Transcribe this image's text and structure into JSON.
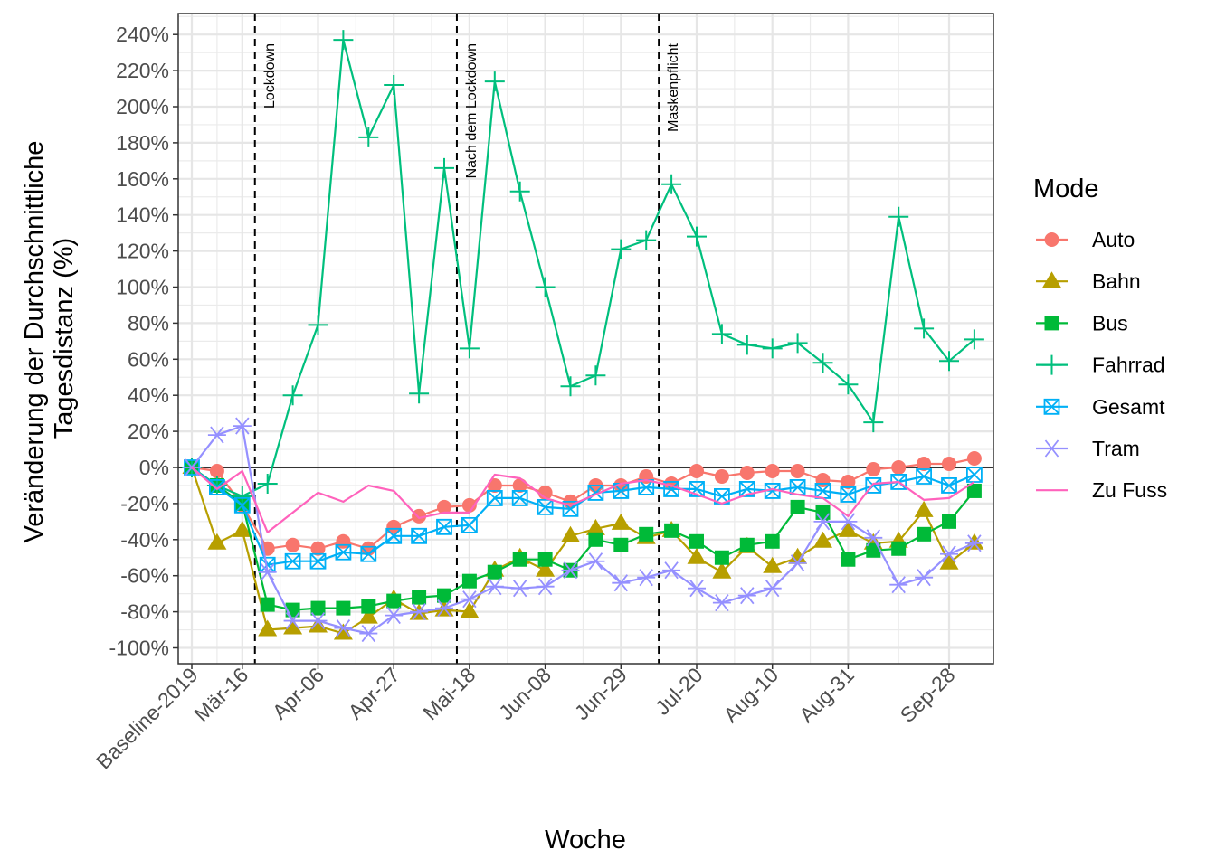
{
  "chart_data": {
    "type": "line",
    "xlabel": "Woche",
    "ylabel_lines": [
      "Veränderung der Durchschnittliche",
      "Tagesdistanz (%)"
    ],
    "x_tick_labels": [
      "Baseline-2019",
      "Mär-16",
      "Apr-06",
      "Apr-27",
      "Mai-18",
      "Jun-08",
      "Jun-29",
      "Jul-20",
      "Aug-10",
      "Aug-31",
      "Sep-28"
    ],
    "x_tick_index": [
      0,
      2,
      5,
      8,
      11,
      14,
      17,
      20,
      23,
      26,
      30
    ],
    "y_ticks": [
      "-100%",
      "-80%",
      "-60%",
      "-40%",
      "-20%",
      "0%",
      "20%",
      "40%",
      "60%",
      "80%",
      "100%",
      "120%",
      "140%",
      "160%",
      "180%",
      "200%",
      "220%",
      "240%"
    ],
    "ylim": [
      -108,
      252
    ],
    "grid": true,
    "legend_title": "Mode",
    "legend_position": "right",
    "reference_line": 0,
    "vlines": [
      {
        "label": "Lockdown",
        "position": "between Baseline-2019 and Mär-16"
      },
      {
        "label": "Nach dem Lockdown",
        "position": "between Apr-27 and Mai-18"
      },
      {
        "label": "Maskenpflicht",
        "position": "between Jun-29 and Jul-20"
      }
    ],
    "series": [
      {
        "name": "Auto",
        "color": "#F8766D",
        "marker": "circle",
        "values": [
          0,
          -2,
          -21,
          -45,
          -43,
          -45,
          -41,
          -45,
          -33,
          -27,
          -22,
          -21,
          -10,
          -10,
          -14,
          -19,
          -10,
          -10,
          -5,
          -9,
          -2,
          -5,
          -3,
          -2,
          -2,
          -7,
          -8,
          -1,
          0,
          2,
          2,
          5
        ]
      },
      {
        "name": "Bahn",
        "color": "#B79F00",
        "marker": "triangle",
        "values": [
          0,
          -42,
          -35,
          -90,
          -89,
          -88,
          -92,
          -83,
          -73,
          -81,
          -79,
          -80,
          -57,
          -50,
          -57,
          -38,
          -34,
          -31,
          -39,
          -35,
          -50,
          -58,
          -44,
          -55,
          -50,
          -41,
          -35,
          -42,
          -41,
          -24,
          -53,
          -42
        ]
      },
      {
        "name": "Bus",
        "color": "#00BA38",
        "marker": "square",
        "values": [
          0,
          -10,
          -20,
          -76,
          -79,
          -78,
          -78,
          -77,
          -74,
          -72,
          -71,
          -63,
          -58,
          -51,
          -51,
          -57,
          -40,
          -43,
          -37,
          -35,
          -41,
          -50,
          -43,
          -41,
          -22,
          -25,
          -51,
          -46,
          -45,
          -37,
          -30,
          -13
        ]
      },
      {
        "name": "Fahrrad",
        "color": "#00BF7D",
        "marker": "plus",
        "values": [
          0,
          -10,
          -16,
          -9,
          40,
          79,
          237,
          183,
          212,
          41,
          166,
          66,
          214,
          153,
          100,
          45,
          51,
          121,
          126,
          157,
          128,
          74,
          68,
          66,
          69,
          58,
          46,
          25,
          139,
          77,
          59,
          71
        ]
      },
      {
        "name": "Gesamt",
        "color": "#00B0F6",
        "marker": "square-x",
        "values": [
          0,
          -11,
          -21,
          -54,
          -52,
          -52,
          -47,
          -48,
          -38,
          -38,
          -33,
          -32,
          -17,
          -17,
          -22,
          -23,
          -14,
          -13,
          -11,
          -12,
          -12,
          -16,
          -12,
          -13,
          -11,
          -13,
          -15,
          -10,
          -8,
          -5,
          -10,
          -4
        ]
      },
      {
        "name": "Tram",
        "color": "#9590FF",
        "marker": "asterisk",
        "values": [
          0,
          18,
          23,
          -58,
          -85,
          -85,
          -89,
          -92,
          -82,
          -80,
          -78,
          -73,
          -66,
          -67,
          -66,
          -57,
          -52,
          -64,
          -61,
          -57,
          -67,
          -75,
          -71,
          -67,
          -53,
          -30,
          -30,
          -39,
          -65,
          -61,
          -48,
          -42
        ]
      },
      {
        "name": "Zu Fuss",
        "color": "#FF62BC",
        "marker": "none",
        "values": [
          0,
          -12,
          -2,
          -36,
          -25,
          -14,
          -19,
          -10,
          -13,
          -28,
          -25,
          -25,
          -4,
          -6,
          -17,
          -21,
          -15,
          -9,
          -7,
          -10,
          -15,
          -20,
          -15,
          -12,
          -15,
          -17,
          -27,
          -9,
          -8,
          -18,
          -17,
          -8
        ]
      }
    ]
  }
}
